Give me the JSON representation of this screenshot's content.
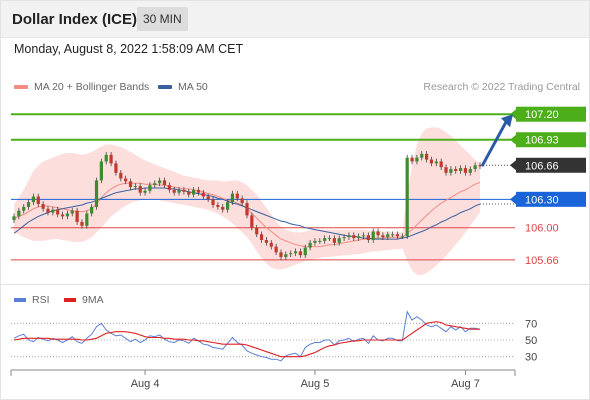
{
  "header": {
    "title": "Dollar Index (ICE)",
    "interval": "30 MIN"
  },
  "timestamp": "Monday, August 8, 2022 1:58:09 AM CET",
  "legend": {
    "ma20": {
      "label": "MA 20 + Bollinger Bands",
      "color": "#f28b82"
    },
    "ma50": {
      "label": "MA 50",
      "color": "#3a5fa0"
    },
    "credit": "Research © 2022 Trading Central"
  },
  "rsi_legend": {
    "rsi": {
      "label": "RSI",
      "color": "#5b7fd6"
    },
    "ma9": {
      "label": "9MA",
      "color": "#e02020"
    }
  },
  "chart_data": [
    {
      "type": "line",
      "ylim": [
        105.5,
        107.35
      ],
      "x_labels": [
        "Aug 4",
        "Aug 5",
        "Aug 7"
      ],
      "levels": [
        {
          "value": 107.2,
          "label": "107.20",
          "style": "resistance-strong",
          "color": "#4caf1a"
        },
        {
          "value": 106.93,
          "label": "106.93",
          "style": "resistance-strong",
          "color": "#4caf1a"
        },
        {
          "value": 106.66,
          "label": "106.66",
          "style": "last-price",
          "color": "#333333"
        },
        {
          "value": 106.3,
          "label": "106.30",
          "style": "pivot",
          "color": "#1a63d8"
        },
        {
          "value": 106.0,
          "label": "106.00",
          "style": "support",
          "color": "#e04545"
        },
        {
          "value": 105.66,
          "label": "105.66",
          "style": "support",
          "color": "#e04545"
        }
      ],
      "price_series": {
        "name": "Price",
        "values": [
          106.12,
          106.18,
          106.22,
          106.27,
          106.33,
          106.25,
          106.2,
          106.16,
          106.19,
          106.14,
          106.12,
          106.15,
          106.18,
          106.06,
          106.02,
          106.15,
          106.22,
          106.5,
          106.7,
          106.77,
          106.68,
          106.58,
          106.52,
          106.49,
          106.43,
          106.44,
          106.37,
          106.39,
          106.45,
          106.47,
          106.5,
          106.45,
          106.4,
          106.37,
          106.4,
          106.38,
          106.35,
          106.4,
          106.37,
          106.33,
          106.3,
          106.24,
          106.22,
          106.19,
          106.27,
          106.36,
          106.31,
          106.26,
          106.13,
          106.0,
          105.93,
          105.87,
          105.84,
          105.8,
          105.74,
          105.69,
          105.72,
          105.73,
          105.75,
          105.71,
          105.79,
          105.84,
          105.86,
          105.86,
          105.89,
          105.89,
          105.84,
          105.89,
          105.9,
          105.92,
          105.89,
          105.91,
          105.92,
          105.87,
          105.96,
          105.92,
          105.9,
          105.93,
          105.93,
          105.91,
          105.91,
          106.74,
          106.7,
          106.74,
          106.78,
          106.72,
          106.68,
          106.7,
          106.64,
          106.58,
          106.62,
          106.6,
          106.63,
          106.58,
          106.62,
          106.66,
          106.65
        ]
      },
      "ma20": [
        106.1,
        106.12,
        106.14,
        106.17,
        106.2,
        106.22,
        106.23,
        106.23,
        106.22,
        106.21,
        106.2,
        106.19,
        106.18,
        106.17,
        106.17,
        106.18,
        106.2,
        106.25,
        106.32,
        106.37,
        106.41,
        106.44,
        106.46,
        106.47,
        106.47,
        106.47,
        106.47,
        106.46,
        106.46,
        106.46,
        106.45,
        106.45,
        106.44,
        106.43,
        106.42,
        106.41,
        106.41,
        106.4,
        106.39,
        106.38,
        106.36,
        106.35,
        106.33,
        106.31,
        106.29,
        106.28,
        106.26,
        106.24,
        106.2,
        106.15,
        106.1,
        106.05,
        106.0,
        105.96,
        105.92,
        105.88,
        105.86,
        105.84,
        105.82,
        105.81,
        105.8,
        105.8,
        105.8,
        105.8,
        105.81,
        105.82,
        105.82,
        105.83,
        105.84,
        105.85,
        105.86,
        105.87,
        105.88,
        105.88,
        105.89,
        105.89,
        105.89,
        105.9,
        105.9,
        105.9,
        105.9,
        105.94,
        105.98,
        106.03,
        106.08,
        106.13,
        106.18,
        106.22,
        106.26,
        106.29,
        106.32,
        106.35,
        106.38,
        106.4,
        106.43,
        106.46,
        106.48
      ],
      "boll_upper": [
        106.25,
        106.32,
        106.4,
        106.5,
        106.6,
        106.66,
        106.7,
        106.72,
        106.74,
        106.76,
        106.78,
        106.79,
        106.79,
        106.78,
        106.77,
        106.78,
        106.8,
        106.83,
        106.86,
        106.88,
        106.88,
        106.87,
        106.85,
        106.83,
        106.8,
        106.77,
        106.74,
        106.71,
        106.69,
        106.67,
        106.65,
        106.63,
        106.61,
        106.59,
        106.57,
        106.55,
        106.54,
        106.53,
        106.52,
        106.51,
        106.5,
        106.5,
        106.5,
        106.49,
        106.49,
        106.5,
        106.5,
        106.48,
        106.45,
        106.4,
        106.35,
        106.28,
        106.21,
        106.14,
        106.07,
        106.01,
        105.98,
        105.96,
        105.95,
        105.95,
        105.96,
        105.97,
        105.98,
        105.98,
        105.98,
        105.98,
        105.98,
        105.98,
        105.98,
        105.98,
        105.98,
        105.98,
        105.98,
        105.97,
        105.97,
        105.97,
        105.96,
        105.96,
        105.95,
        105.95,
        105.95,
        106.35,
        106.65,
        106.88,
        107.0,
        107.05,
        107.06,
        107.06,
        107.04,
        107.01,
        106.97,
        106.92,
        106.87,
        106.82,
        106.77,
        106.72,
        106.68
      ],
      "boll_lower": [
        105.95,
        105.93,
        105.9,
        105.88,
        105.86,
        105.86,
        105.86,
        105.87,
        105.88,
        105.88,
        105.87,
        105.86,
        105.85,
        105.85,
        105.85,
        105.87,
        105.9,
        105.95,
        106.0,
        106.06,
        106.12,
        106.16,
        106.2,
        106.23,
        106.26,
        106.28,
        106.29,
        106.3,
        106.3,
        106.3,
        106.29,
        106.28,
        106.27,
        106.26,
        106.25,
        106.24,
        106.23,
        106.22,
        106.21,
        106.2,
        106.19,
        106.17,
        106.15,
        106.12,
        106.09,
        106.05,
        106.0,
        105.95,
        105.9,
        105.83,
        105.75,
        105.68,
        105.62,
        105.58,
        105.56,
        105.56,
        105.57,
        105.59,
        105.61,
        105.63,
        105.65,
        105.66,
        105.67,
        105.68,
        105.69,
        105.69,
        105.7,
        105.7,
        105.71,
        105.71,
        105.72,
        105.72,
        105.73,
        105.74,
        105.75,
        105.75,
        105.76,
        105.76,
        105.77,
        105.77,
        105.78,
        105.65,
        105.55,
        105.5,
        105.5,
        105.52,
        105.56,
        105.6,
        105.65,
        105.7,
        105.76,
        105.82,
        105.88,
        105.95,
        106.02,
        106.09,
        106.16
      ],
      "ma50": [
        105.94,
        105.98,
        106.02,
        106.06,
        106.09,
        106.12,
        106.14,
        106.16,
        106.18,
        106.19,
        106.2,
        106.21,
        106.22,
        106.23,
        106.24,
        106.26,
        106.27,
        106.29,
        106.31,
        106.33,
        106.35,
        106.37,
        106.38,
        106.39,
        106.4,
        106.41,
        106.41,
        106.42,
        106.42,
        106.42,
        106.42,
        106.42,
        106.41,
        106.41,
        106.4,
        106.39,
        106.38,
        106.37,
        106.36,
        106.35,
        106.34,
        106.33,
        106.31,
        106.3,
        106.28,
        106.26,
        106.25,
        106.23,
        106.21,
        106.19,
        106.17,
        106.15,
        106.13,
        106.11,
        106.09,
        106.07,
        106.06,
        106.04,
        106.03,
        106.02,
        106.0,
        105.99,
        105.98,
        105.97,
        105.96,
        105.95,
        105.94,
        105.93,
        105.92,
        105.91,
        105.91,
        105.9,
        105.89,
        105.89,
        105.88,
        105.88,
        105.88,
        105.88,
        105.88,
        105.88,
        105.89,
        105.9,
        105.92,
        105.94,
        105.96,
        105.98,
        106.01,
        106.03,
        106.06,
        106.08,
        106.11,
        106.13,
        106.16,
        106.18,
        106.2,
        106.23,
        106.25
      ]
    },
    {
      "type": "line",
      "ylim": [
        20,
        80
      ],
      "y_ticks": [
        70,
        50,
        30
      ],
      "reference_lines": [
        70,
        50,
        30
      ],
      "series": [
        {
          "name": "RSI",
          "values": [
            52,
            55,
            57,
            50,
            48,
            53,
            51,
            49,
            52,
            50,
            47,
            50,
            54,
            48,
            46,
            52,
            57,
            66,
            70,
            62,
            58,
            55,
            56,
            52,
            48,
            51,
            47,
            50,
            55,
            54,
            56,
            51,
            48,
            47,
            50,
            49,
            46,
            52,
            49,
            45,
            44,
            41,
            40,
            39,
            46,
            53,
            47,
            44,
            37,
            34,
            32,
            30,
            29,
            27,
            27,
            25,
            31,
            33,
            34,
            30,
            41,
            45,
            47,
            47,
            50,
            50,
            44,
            49,
            50,
            52,
            48,
            51,
            52,
            46,
            55,
            50,
            49,
            52,
            52,
            49,
            49,
            84,
            74,
            78,
            74,
            68,
            66,
            68,
            64,
            60,
            66,
            62,
            66,
            60,
            64,
            64,
            63
          ]
        },
        {
          "name": "9MA",
          "values": [
            50,
            51,
            52,
            52,
            52,
            52,
            52,
            52,
            51,
            51,
            51,
            51,
            51,
            51,
            50,
            50,
            51,
            52,
            55,
            58,
            59,
            60,
            60,
            60,
            59,
            58,
            56,
            54,
            53,
            53,
            53,
            52,
            52,
            51,
            51,
            51,
            50,
            50,
            49,
            49,
            48,
            47,
            46,
            45,
            45,
            45,
            45,
            45,
            44,
            42,
            40,
            38,
            36,
            34,
            32,
            30,
            30,
            30,
            30,
            30,
            31,
            33,
            35,
            38,
            41,
            43,
            44,
            46,
            47,
            48,
            49,
            49,
            50,
            50,
            50,
            50,
            50,
            50,
            50,
            50,
            50,
            54,
            58,
            62,
            66,
            70,
            71,
            72,
            71,
            68,
            67,
            66,
            65,
            64,
            63,
            63,
            63
          ]
        }
      ]
    }
  ]
}
